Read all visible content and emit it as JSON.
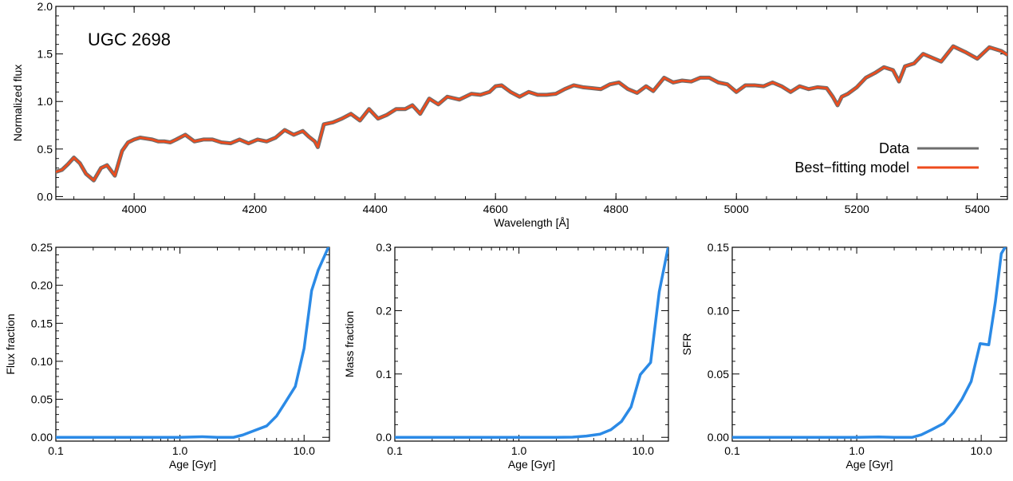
{
  "chart_data": [
    {
      "type": "line",
      "title": "UGC 2698",
      "xlabel": "Wavelength [Å]",
      "ylabel": "Normalized flux",
      "xlim": [
        3870,
        5450
      ],
      "ylim": [
        -0.03,
        2.0
      ],
      "x_scale": "linear",
      "xticks": [
        4000,
        4200,
        4400,
        4600,
        4800,
        5000,
        5200,
        5400
      ],
      "xtick_labels": [
        "4000",
        "4200",
        "4400",
        "4600",
        "4800",
        "5000",
        "5200",
        "5400"
      ],
      "yticks": [
        0.0,
        0.5,
        1.0,
        1.5,
        2.0
      ],
      "ytick_labels": [
        "0.0",
        "0.5",
        "1.0",
        "1.5",
        "2.0"
      ],
      "legend_position": "bottom-right",
      "colors": {
        "data": "#6e6e6e",
        "model": "#ee4b1c"
      },
      "series": [
        {
          "name": "Data",
          "color": "#6e6e6e",
          "x": [
            3870,
            3880,
            3890,
            3900,
            3910,
            3920,
            3933,
            3945,
            3955,
            3968,
            3980,
            3990,
            4000,
            4010,
            4020,
            4030,
            4040,
            4050,
            4060,
            4070,
            4085,
            4100,
            4115,
            4130,
            4145,
            4160,
            4175,
            4190,
            4205,
            4220,
            4235,
            4250,
            4265,
            4280,
            4290,
            4300,
            4305,
            4315,
            4330,
            4345,
            4360,
            4375,
            4390,
            4405,
            4420,
            4435,
            4450,
            4462,
            4475,
            4490,
            4505,
            4520,
            4540,
            4560,
            4575,
            4590,
            4600,
            4610,
            4625,
            4640,
            4655,
            4670,
            4685,
            4700,
            4715,
            4730,
            4745,
            4760,
            4775,
            4790,
            4805,
            4820,
            4835,
            4850,
            4862,
            4880,
            4895,
            4910,
            4925,
            4940,
            4955,
            4970,
            4985,
            5000,
            5015,
            5030,
            5045,
            5060,
            5075,
            5090,
            5105,
            5120,
            5135,
            5150,
            5160,
            5168,
            5175,
            5185,
            5200,
            5215,
            5230,
            5245,
            5260,
            5270,
            5280,
            5295,
            5310,
            5325,
            5340,
            5360,
            5380,
            5400,
            5420,
            5440,
            5450
          ],
          "y": [
            0.26,
            0.28,
            0.34,
            0.41,
            0.35,
            0.24,
            0.17,
            0.3,
            0.33,
            0.22,
            0.48,
            0.57,
            0.6,
            0.62,
            0.61,
            0.6,
            0.58,
            0.58,
            0.57,
            0.6,
            0.65,
            0.58,
            0.6,
            0.6,
            0.57,
            0.56,
            0.6,
            0.56,
            0.6,
            0.58,
            0.62,
            0.7,
            0.65,
            0.69,
            0.63,
            0.58,
            0.52,
            0.76,
            0.78,
            0.82,
            0.87,
            0.8,
            0.92,
            0.82,
            0.86,
            0.92,
            0.92,
            0.96,
            0.87,
            1.03,
            0.97,
            1.05,
            1.02,
            1.08,
            1.07,
            1.1,
            1.16,
            1.17,
            1.1,
            1.05,
            1.1,
            1.07,
            1.07,
            1.08,
            1.13,
            1.17,
            1.15,
            1.14,
            1.13,
            1.18,
            1.2,
            1.13,
            1.09,
            1.16,
            1.11,
            1.25,
            1.2,
            1.22,
            1.21,
            1.25,
            1.25,
            1.2,
            1.18,
            1.1,
            1.17,
            1.17,
            1.16,
            1.2,
            1.16,
            1.1,
            1.16,
            1.13,
            1.15,
            1.14,
            1.05,
            0.96,
            1.05,
            1.08,
            1.15,
            1.25,
            1.3,
            1.36,
            1.33,
            1.21,
            1.37,
            1.4,
            1.5,
            1.46,
            1.42,
            1.58,
            1.52,
            1.45,
            1.57,
            1.53,
            1.49
          ]
        },
        {
          "name": "Best−fitting model",
          "color": "#ee4b1c",
          "x": [
            3870,
            3880,
            3890,
            3900,
            3910,
            3920,
            3933,
            3945,
            3955,
            3968,
            3980,
            3990,
            4000,
            4010,
            4020,
            4030,
            4040,
            4050,
            4060,
            4070,
            4085,
            4100,
            4115,
            4130,
            4145,
            4160,
            4175,
            4190,
            4205,
            4220,
            4235,
            4250,
            4265,
            4280,
            4290,
            4300,
            4305,
            4315,
            4330,
            4345,
            4360,
            4375,
            4390,
            4405,
            4420,
            4435,
            4450,
            4462,
            4475,
            4490,
            4505,
            4520,
            4540,
            4560,
            4575,
            4590,
            4600,
            4610,
            4625,
            4640,
            4655,
            4670,
            4685,
            4700,
            4715,
            4730,
            4745,
            4760,
            4775,
            4790,
            4805,
            4820,
            4835,
            4850,
            4862,
            4880,
            4895,
            4910,
            4925,
            4940,
            4955,
            4970,
            4985,
            5000,
            5015,
            5030,
            5045,
            5060,
            5075,
            5090,
            5105,
            5120,
            5135,
            5150,
            5160,
            5168,
            5175,
            5185,
            5200,
            5215,
            5230,
            5245,
            5260,
            5270,
            5280,
            5295,
            5310,
            5325,
            5340,
            5360,
            5380,
            5400,
            5420,
            5440,
            5450
          ],
          "y": [
            0.26,
            0.28,
            0.34,
            0.41,
            0.35,
            0.24,
            0.17,
            0.3,
            0.33,
            0.22,
            0.48,
            0.57,
            0.6,
            0.62,
            0.61,
            0.6,
            0.58,
            0.58,
            0.57,
            0.6,
            0.65,
            0.58,
            0.6,
            0.6,
            0.57,
            0.56,
            0.6,
            0.56,
            0.6,
            0.58,
            0.62,
            0.7,
            0.65,
            0.69,
            0.63,
            0.58,
            0.52,
            0.76,
            0.78,
            0.82,
            0.87,
            0.8,
            0.92,
            0.82,
            0.86,
            0.92,
            0.92,
            0.96,
            0.87,
            1.03,
            0.97,
            1.05,
            1.02,
            1.08,
            1.07,
            1.1,
            1.16,
            1.17,
            1.1,
            1.05,
            1.1,
            1.07,
            1.07,
            1.08,
            1.13,
            1.17,
            1.15,
            1.14,
            1.13,
            1.18,
            1.2,
            1.13,
            1.09,
            1.16,
            1.11,
            1.25,
            1.2,
            1.22,
            1.21,
            1.25,
            1.25,
            1.2,
            1.18,
            1.1,
            1.17,
            1.17,
            1.16,
            1.2,
            1.16,
            1.1,
            1.16,
            1.13,
            1.15,
            1.14,
            1.05,
            0.96,
            1.05,
            1.08,
            1.15,
            1.25,
            1.3,
            1.36,
            1.33,
            1.21,
            1.37,
            1.4,
            1.5,
            1.46,
            1.42,
            1.58,
            1.52,
            1.45,
            1.57,
            1.53,
            1.49
          ]
        }
      ]
    },
    {
      "type": "line",
      "xlabel": "Age [Gyr]",
      "ylabel": "Flux fraction",
      "x_scale": "log",
      "xlim": [
        0.1,
        16
      ],
      "ylim": [
        -0.005,
        0.25
      ],
      "xticks": [
        0.1,
        1.0,
        10.0
      ],
      "xtick_labels": [
        "0.1",
        "1.0",
        "10.0"
      ],
      "yticks": [
        0.0,
        0.05,
        0.1,
        0.15,
        0.2,
        0.25
      ],
      "ytick_labels": [
        "0.00",
        "0.05",
        "0.10",
        "0.15",
        "0.20",
        "0.25"
      ],
      "color": "#2b8ae6",
      "x": [
        0.1,
        1.0,
        1.5,
        2.0,
        2.7,
        3.2,
        4.0,
        5.0,
        6.0,
        7.0,
        8.5,
        10.0,
        11.5,
        13.0,
        16.0
      ],
      "y": [
        0.0,
        0.0,
        0.0008,
        0.0,
        0.0,
        0.003,
        0.009,
        0.015,
        0.028,
        0.045,
        0.067,
        0.117,
        0.193,
        0.22,
        0.253
      ]
    },
    {
      "type": "line",
      "xlabel": "Age [Gyr]",
      "ylabel": "Mass fraction",
      "x_scale": "log",
      "xlim": [
        0.1,
        16
      ],
      "ylim": [
        -0.006,
        0.3
      ],
      "xticks": [
        0.1,
        1.0,
        10.0
      ],
      "xtick_labels": [
        "0.1",
        "1.0",
        "10.0"
      ],
      "yticks": [
        0.0,
        0.1,
        0.2,
        0.3
      ],
      "ytick_labels": [
        "0.0",
        "0.1",
        "0.2",
        "0.3"
      ],
      "color": "#2b8ae6",
      "x": [
        0.1,
        1.0,
        2.0,
        2.7,
        3.5,
        4.5,
        5.5,
        6.7,
        8.0,
        9.5,
        11.5,
        13.5,
        16.0
      ],
      "y": [
        0.0,
        0.0,
        0.0,
        0.0003,
        0.002,
        0.005,
        0.012,
        0.025,
        0.048,
        0.099,
        0.118,
        0.23,
        0.302
      ]
    },
    {
      "type": "line",
      "xlabel": "Age [Gyr]",
      "ylabel": "SFR",
      "x_scale": "log",
      "xlim": [
        0.1,
        16
      ],
      "ylim": [
        -0.003,
        0.15
      ],
      "xticks": [
        0.1,
        1.0,
        10.0
      ],
      "xtick_labels": [
        "0.1",
        "1.0",
        "10.0"
      ],
      "yticks": [
        0.0,
        0.05,
        0.1,
        0.15
      ],
      "ytick_labels": [
        "0.00",
        "0.05",
        "0.10",
        "0.15"
      ],
      "color": "#2b8ae6",
      "x": [
        0.1,
        1.0,
        1.5,
        2.0,
        2.8,
        3.3,
        4.0,
        5.0,
        6.0,
        7.0,
        8.3,
        9.8,
        11.5,
        13.0,
        14.5,
        16.0
      ],
      "y": [
        0.0,
        0.0,
        0.0003,
        0.0,
        0.0,
        0.002,
        0.006,
        0.011,
        0.02,
        0.03,
        0.044,
        0.074,
        0.073,
        0.107,
        0.145,
        0.152
      ]
    }
  ]
}
